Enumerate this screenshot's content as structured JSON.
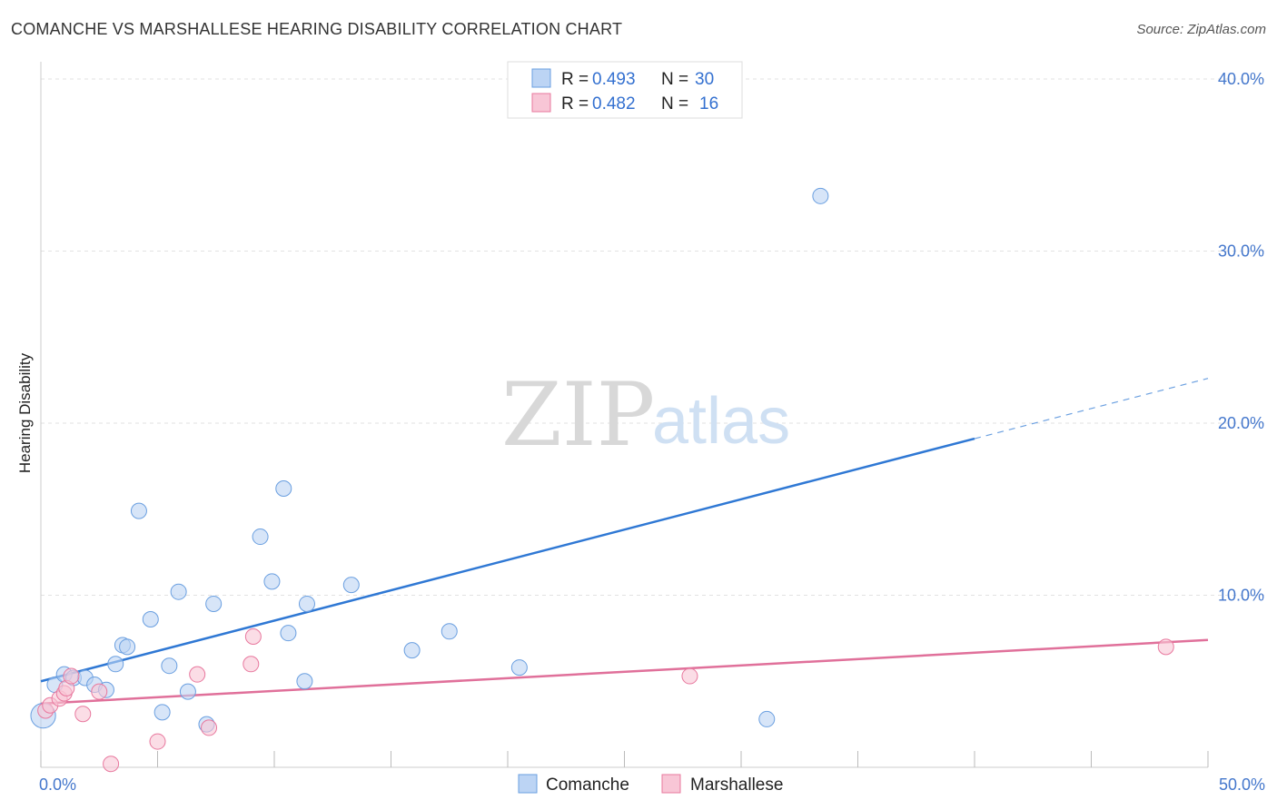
{
  "header": {
    "title": "COMANCHE VS MARSHALLESE HEARING DISABILITY CORRELATION CHART",
    "source": "Source: ZipAtlas.com"
  },
  "watermark": {
    "zip": "ZIP",
    "atlas": "atlas"
  },
  "legend": {
    "r_label": "R =",
    "n_label": "N =",
    "rows": [
      {
        "series": "Comanche",
        "r": "0.493",
        "n": "30",
        "color": "#aac8f0"
      },
      {
        "series": "Marshallese",
        "r": "0.482",
        "n": "16",
        "color": "#f6b8cc"
      }
    ]
  },
  "chart_data": {
    "type": "scatter",
    "title": "COMANCHE VS MARSHALLESE HEARING DISABILITY CORRELATION CHART",
    "xlabel": "",
    "ylabel": "Hearing Disability",
    "xlim": [
      0,
      50
    ],
    "ylim": [
      0,
      41
    ],
    "x_tick_labels": [
      "0.0%",
      "50.0%"
    ],
    "y_ticks": [
      10,
      20,
      30,
      40
    ],
    "y_tick_labels": [
      "10.0%",
      "20.0%",
      "30.0%",
      "40.0%"
    ],
    "grid": true,
    "legend_position": "top-center",
    "series": [
      {
        "name": "Comanche",
        "color": "#6a9fe0",
        "fill": "#bcd4f4",
        "points": [
          [
            0.1,
            3.0,
            1.6
          ],
          [
            0.6,
            4.8,
            1
          ],
          [
            1.0,
            5.4,
            1
          ],
          [
            1.4,
            5.2,
            1
          ],
          [
            1.9,
            5.2,
            1
          ],
          [
            2.3,
            4.8,
            1
          ],
          [
            2.8,
            4.5,
            1
          ],
          [
            3.2,
            6.0,
            1
          ],
          [
            3.5,
            7.1,
            1
          ],
          [
            3.7,
            7.0,
            1
          ],
          [
            4.2,
            14.9,
            1
          ],
          [
            4.7,
            8.6,
            1
          ],
          [
            5.2,
            3.2,
            1
          ],
          [
            5.5,
            5.9,
            1
          ],
          [
            5.9,
            10.2,
            1
          ],
          [
            6.3,
            4.4,
            1
          ],
          [
            7.1,
            2.5,
            1
          ],
          [
            7.4,
            9.5,
            1
          ],
          [
            9.4,
            13.4,
            1
          ],
          [
            9.9,
            10.8,
            1
          ],
          [
            10.4,
            16.2,
            1
          ],
          [
            10.6,
            7.8,
            1
          ],
          [
            11.3,
            5.0,
            1
          ],
          [
            11.4,
            9.5,
            1
          ],
          [
            13.3,
            10.6,
            1
          ],
          [
            15.9,
            6.8,
            1
          ],
          [
            17.5,
            7.9,
            1
          ],
          [
            20.5,
            5.8,
            1
          ],
          [
            31.1,
            2.8,
            1
          ],
          [
            33.4,
            33.2,
            1
          ]
        ],
        "trend": {
          "x0": 0,
          "y0": 5.0,
          "x1": 40.0,
          "y1": 19.1,
          "dash_x1": 50.0,
          "dash_y1": 22.6
        }
      },
      {
        "name": "Marshallese",
        "color": "#e8789e",
        "fill": "#f8c6d6",
        "points": [
          [
            0.2,
            3.3,
            1
          ],
          [
            0.4,
            3.6,
            1
          ],
          [
            0.8,
            4.0,
            1
          ],
          [
            1.0,
            4.3,
            1
          ],
          [
            1.1,
            4.6,
            1
          ],
          [
            1.3,
            5.3,
            1
          ],
          [
            1.8,
            3.1,
            1
          ],
          [
            2.5,
            4.4,
            1
          ],
          [
            3.0,
            0.2,
            1
          ],
          [
            5.0,
            1.5,
            1
          ],
          [
            6.7,
            5.4,
            1
          ],
          [
            7.2,
            2.3,
            1
          ],
          [
            9.0,
            6.0,
            1
          ],
          [
            9.1,
            7.6,
            1
          ],
          [
            27.8,
            5.3,
            1
          ],
          [
            48.2,
            7.0,
            1
          ]
        ],
        "trend": {
          "x0": 0,
          "y0": 3.7,
          "x1": 50.0,
          "y1": 7.4
        }
      }
    ]
  }
}
